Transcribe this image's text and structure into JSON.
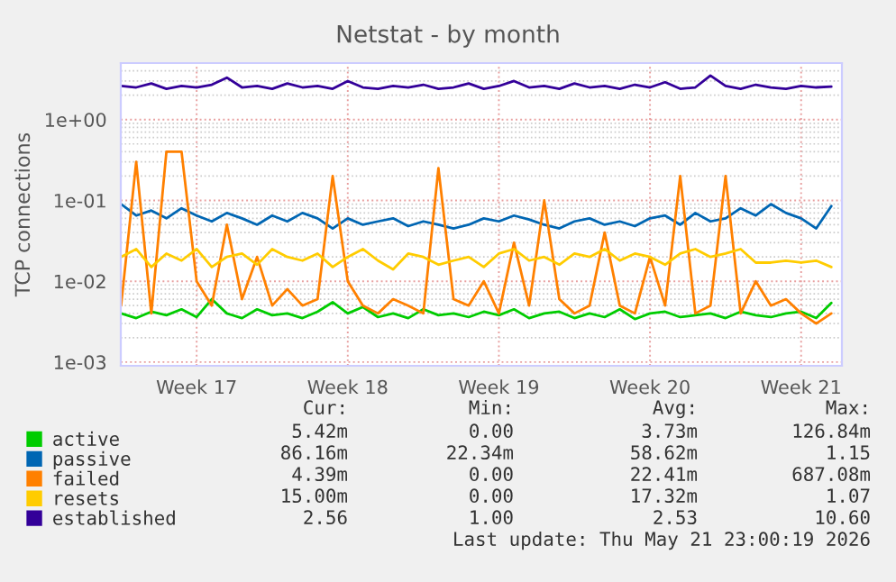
{
  "chart_data": {
    "type": "line",
    "title": "Netstat - by month",
    "ylabel": "TCP connections",
    "categories": [
      null,
      null,
      null,
      null,
      null,
      "Week 17",
      null,
      null,
      null,
      null,
      null,
      null,
      null,
      null,
      null,
      "Week 18",
      null,
      null,
      null,
      null,
      null,
      null,
      null,
      null,
      null,
      "Week 19",
      null,
      null,
      null,
      null,
      null,
      null,
      null,
      null,
      null,
      "Week 20",
      null,
      null,
      null,
      null,
      null,
      null,
      null,
      null,
      null,
      "Week 21",
      null,
      null
    ],
    "series": [
      {
        "name": "active",
        "color": "#00cc00",
        "values": [
          0.004,
          0.0035,
          0.0042,
          0.0038,
          0.0045,
          0.0036,
          0.006,
          0.004,
          0.0035,
          0.0045,
          0.0038,
          0.004,
          0.0035,
          0.0042,
          0.0055,
          0.004,
          0.0048,
          0.0036,
          0.004,
          0.0035,
          0.0045,
          0.0038,
          0.004,
          0.0036,
          0.0042,
          0.0038,
          0.0045,
          0.0035,
          0.004,
          0.0042,
          0.0035,
          0.004,
          0.0036,
          0.0045,
          0.0034,
          0.004,
          0.0042,
          0.0036,
          0.0038,
          0.004,
          0.0035,
          0.0042,
          0.0038,
          0.0036,
          0.004,
          0.0042,
          0.0035,
          0.0054
        ]
      },
      {
        "name": "passive",
        "color": "#0066b3",
        "values": [
          0.09,
          0.065,
          0.075,
          0.06,
          0.08,
          0.065,
          0.055,
          0.07,
          0.06,
          0.05,
          0.065,
          0.055,
          0.07,
          0.06,
          0.045,
          0.06,
          0.05,
          0.055,
          0.06,
          0.048,
          0.055,
          0.05,
          0.045,
          0.05,
          0.06,
          0.055,
          0.065,
          0.058,
          0.05,
          0.045,
          0.055,
          0.06,
          0.05,
          0.055,
          0.048,
          0.06,
          0.065,
          0.05,
          0.07,
          0.055,
          0.06,
          0.08,
          0.065,
          0.09,
          0.07,
          0.06,
          0.045,
          0.085
        ]
      },
      {
        "name": "failed",
        "color": "#ff8000",
        "values": [
          0.005,
          0.3,
          0.004,
          0.4,
          0.4,
          0.01,
          0.005,
          0.05,
          0.006,
          0.02,
          0.005,
          0.008,
          0.005,
          0.006,
          0.2,
          0.01,
          0.005,
          0.004,
          0.006,
          0.005,
          0.004,
          0.25,
          0.006,
          0.005,
          0.01,
          0.004,
          0.03,
          0.005,
          0.1,
          0.006,
          0.004,
          0.005,
          0.04,
          0.005,
          0.004,
          0.02,
          0.005,
          0.2,
          0.004,
          0.005,
          0.2,
          0.004,
          0.01,
          0.005,
          0.006,
          0.004,
          0.003,
          0.004
        ]
      },
      {
        "name": "resets",
        "color": "#ffcc00",
        "values": [
          0.02,
          0.025,
          0.015,
          0.022,
          0.018,
          0.025,
          0.015,
          0.02,
          0.022,
          0.016,
          0.025,
          0.02,
          0.018,
          0.022,
          0.015,
          0.02,
          0.025,
          0.018,
          0.014,
          0.022,
          0.02,
          0.016,
          0.018,
          0.02,
          0.015,
          0.022,
          0.025,
          0.018,
          0.02,
          0.016,
          0.022,
          0.02,
          0.025,
          0.018,
          0.022,
          0.02,
          0.016,
          0.022,
          0.025,
          0.02,
          0.022,
          0.025,
          0.017,
          0.017,
          0.018,
          0.017,
          0.018,
          0.015
        ]
      },
      {
        "name": "established",
        "color": "#330099",
        "values": [
          2.6,
          2.5,
          2.8,
          2.4,
          2.6,
          2.5,
          2.7,
          3.3,
          2.5,
          2.6,
          2.4,
          2.8,
          2.5,
          2.6,
          2.4,
          3.0,
          2.5,
          2.4,
          2.6,
          2.5,
          2.7,
          2.4,
          2.5,
          2.8,
          2.4,
          2.6,
          3.0,
          2.5,
          2.6,
          2.4,
          2.8,
          2.5,
          2.6,
          2.4,
          2.7,
          2.5,
          2.9,
          2.4,
          2.5,
          3.5,
          2.6,
          2.4,
          2.7,
          2.5,
          2.4,
          2.6,
          2.5,
          2.56
        ]
      }
    ],
    "log": "y",
    "ylim": [
      0.0009,
      5
    ],
    "yticks": [
      {
        "value": 0.001,
        "label": "1e-03"
      },
      {
        "value": 0.01,
        "label": "1e-02"
      },
      {
        "value": 0.1,
        "label": "1e-01"
      },
      {
        "value": 1,
        "label": "1e+00"
      }
    ],
    "grid": true,
    "legend": "bottom",
    "annotations": [
      "Cur:",
      "Min:",
      "Avg:",
      "Max:",
      "5.42m",
      "0.00",
      "3.73m",
      "126.84m",
      "86.16m",
      "22.34m",
      "58.62m",
      "1.15",
      "4.39m",
      "0.00",
      "22.41m",
      "687.08m",
      "15.00m",
      "0.00",
      "17.32m",
      "1.07",
      "2.56",
      "1.00",
      "2.53",
      "10.60",
      "Last update: Thu May 21 23:00:19 2026"
    ]
  }
}
